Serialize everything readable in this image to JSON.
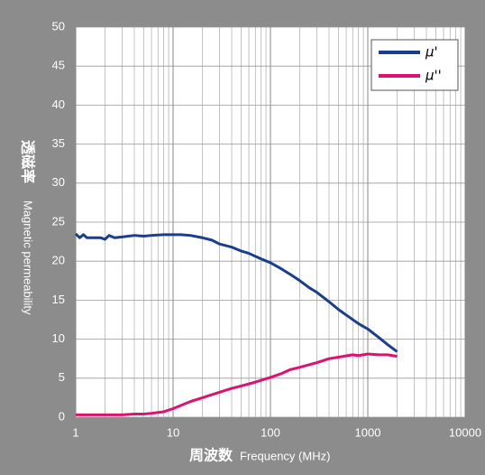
{
  "chart_data": {
    "type": "line",
    "xlabel": "周波数",
    "xlabel_en": "Frequency (MHz)",
    "ylabel": "透磁率",
    "ylabel_en": "Magnetic permeability",
    "xscale": "log",
    "xlim": [
      1,
      10000
    ],
    "xticks": [
      1,
      10,
      100,
      1000,
      10000
    ],
    "ylim": [
      0,
      50
    ],
    "yticks": [
      0,
      5,
      10,
      15,
      20,
      25,
      30,
      35,
      40,
      45,
      50
    ],
    "grid": true,
    "minor_grid": true,
    "legend": "upper right",
    "series": [
      {
        "name": "μ'",
        "color": "#1a3d8f",
        "x": [
          1,
          1.1,
          1.2,
          1.3,
          1.5,
          1.8,
          2,
          2.2,
          2.5,
          3,
          4,
          5,
          6,
          8,
          10,
          12,
          15,
          20,
          25,
          30,
          40,
          50,
          60,
          80,
          100,
          130,
          160,
          200,
          250,
          300,
          400,
          500,
          600,
          800,
          1000,
          1300,
          1600,
          2000
        ],
        "values": [
          23.5,
          23,
          23.4,
          23,
          23,
          23,
          22.8,
          23.3,
          23,
          23.1,
          23.3,
          23.2,
          23.3,
          23.4,
          23.4,
          23.4,
          23.3,
          23,
          22.7,
          22.2,
          21.8,
          21.3,
          21,
          20.3,
          19.8,
          19,
          18.3,
          17.5,
          16.6,
          16,
          14.8,
          13.8,
          13.1,
          12,
          11.3,
          10.2,
          9.3,
          8.4
        ]
      },
      {
        "name": "μ''",
        "color": "#e0106e",
        "x": [
          1,
          2,
          3,
          4,
          5,
          6,
          8,
          10,
          12,
          15,
          20,
          30,
          40,
          50,
          70,
          100,
          130,
          160,
          200,
          300,
          400,
          500,
          700,
          800,
          1000,
          1300,
          1600,
          2000
        ],
        "values": [
          0.3,
          0.3,
          0.3,
          0.4,
          0.4,
          0.5,
          0.7,
          1.1,
          1.5,
          2,
          2.5,
          3.2,
          3.7,
          4,
          4.5,
          5.1,
          5.6,
          6.1,
          6.4,
          7,
          7.5,
          7.7,
          8,
          7.9,
          8.1,
          8,
          8,
          7.8
        ]
      }
    ]
  }
}
